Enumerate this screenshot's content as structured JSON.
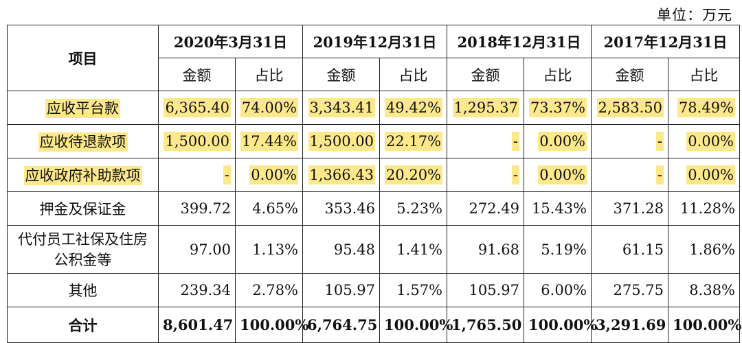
{
  "unit_label": "单位：万元",
  "header": {
    "item": "项目",
    "periods": [
      "2020年3月31日",
      "2019年12月31日",
      "2018年12月31日",
      "2017年12月31日"
    ],
    "amount": "金额",
    "ratio": "占比"
  },
  "rows": [
    {
      "label": "应收平台款",
      "values": [
        "6,365.40",
        "74.00%",
        "3,343.41",
        "49.42%",
        "1,295.37",
        "73.37%",
        "2,583.50",
        "78.49%"
      ]
    },
    {
      "label": "应收待退款项",
      "values": [
        "1,500.00",
        "17.44%",
        "1,500.00",
        "22.17%",
        "-",
        "0.00%",
        "-",
        "0.00%"
      ]
    },
    {
      "label": "应收政府补助款项",
      "values": [
        "-",
        "0.00%",
        "1,366.43",
        "20.20%",
        "-",
        "0.00%",
        "-",
        "0.00%"
      ]
    },
    {
      "label": "押金及保证金",
      "values": [
        "399.72",
        "4.65%",
        "353.46",
        "5.23%",
        "272.49",
        "15.43%",
        "371.28",
        "11.28%"
      ]
    },
    {
      "label": "代付员工社保及住房公积金等",
      "values": [
        "97.00",
        "1.13%",
        "95.48",
        "1.41%",
        "91.68",
        "5.19%",
        "61.15",
        "1.86%"
      ]
    },
    {
      "label": "其他",
      "values": [
        "239.34",
        "2.78%",
        "105.97",
        "1.57%",
        "105.97",
        "6.00%",
        "275.75",
        "8.38%"
      ]
    }
  ],
  "total": {
    "label": "合计",
    "values": [
      "8,601.47",
      "100.00%",
      "6,764.75",
      "100.00%",
      "1,765.50",
      "100.00%",
      "3,291.69",
      "100.00%"
    ]
  },
  "highlight_color": "#fde98c"
}
